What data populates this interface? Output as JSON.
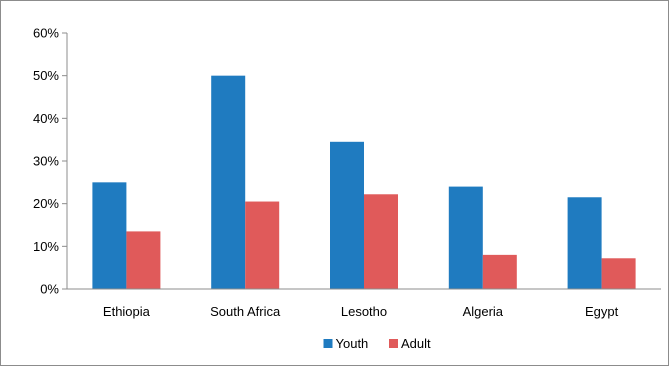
{
  "chart_data": {
    "type": "bar",
    "categories": [
      "Ethiopia",
      "South Africa",
      "Lesotho",
      "Algeria",
      "Egypt"
    ],
    "series": [
      {
        "name": "Youth",
        "values": [
          25,
          50,
          34.5,
          24,
          21.5
        ],
        "color": "#1f7bc0"
      },
      {
        "name": "Adult",
        "values": [
          13.5,
          20.5,
          22.2,
          8,
          7.2
        ],
        "color": "#e05a5a"
      }
    ],
    "y_ticks": [
      "0%",
      "10%",
      "20%",
      "30%",
      "40%",
      "50%",
      "60%"
    ],
    "ylim": [
      0,
      60
    ],
    "y_format": "percent",
    "legend_position": "bottom",
    "grid": false
  }
}
